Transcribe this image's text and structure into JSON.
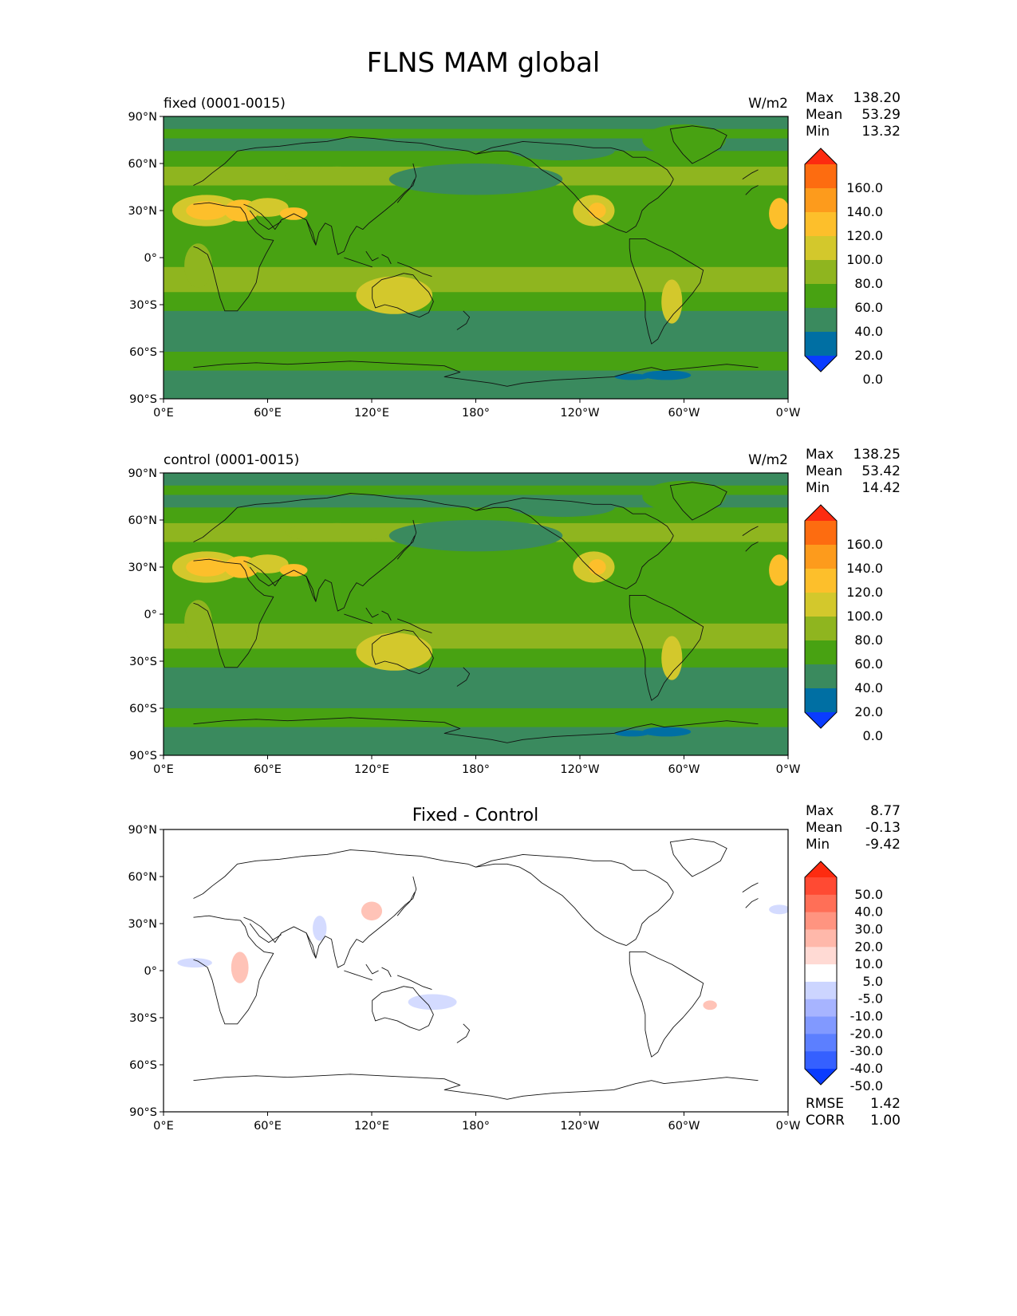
{
  "title": "FLNS MAM global",
  "x_ticks": [
    "0°E",
    "60°E",
    "120°E",
    "180°",
    "120°W",
    "60°W",
    "0°W"
  ],
  "y_ticks": [
    "90°N",
    "60°N",
    "30°N",
    "0°",
    "30°S",
    "60°S",
    "90°S"
  ],
  "colors": {
    "field_levels": [
      "#0a3cff",
      "#006fa3",
      "#3a8a5e",
      "#48a212",
      "#8fb51f",
      "#d3c82c",
      "#fdbf2b",
      "#fd9b1c",
      "#fd6c10",
      "#fd2b10"
    ],
    "diff_levels": [
      "#0a3cff",
      "#3560ff",
      "#5c7fff",
      "#8199ff",
      "#a7b4ff",
      "#ccd5ff",
      "#ffffff",
      "#ffdad4",
      "#ffb8aa",
      "#ff9480",
      "#ff6f57",
      "#ff4a33",
      "#fd2b10"
    ]
  },
  "panels": [
    {
      "name": "fixed",
      "left_title": "fixed (0001-0015)",
      "center_title": "",
      "units": "W/m2",
      "stats": [
        {
          "label": "Max",
          "value": "138.20"
        },
        {
          "label": "Mean",
          "value": "53.29"
        },
        {
          "label": "Min",
          "value": "13.32"
        }
      ],
      "colorbar_labels": [
        "160.0",
        "140.0",
        "120.0",
        "100.0",
        "80.0",
        "60.0",
        "40.0",
        "20.0",
        "0.0"
      ],
      "extra_stats": []
    },
    {
      "name": "control",
      "left_title": "control (0001-0015)",
      "center_title": "",
      "units": "W/m2",
      "stats": [
        {
          "label": "Max",
          "value": "138.25"
        },
        {
          "label": "Mean",
          "value": "53.42"
        },
        {
          "label": "Min",
          "value": "14.42"
        }
      ],
      "colorbar_labels": [
        "160.0",
        "140.0",
        "120.0",
        "100.0",
        "80.0",
        "60.0",
        "40.0",
        "20.0",
        "0.0"
      ],
      "extra_stats": []
    },
    {
      "name": "diff",
      "left_title": "",
      "center_title": "Fixed - Control",
      "units": "",
      "stats": [
        {
          "label": "Max",
          "value": "8.77"
        },
        {
          "label": "Mean",
          "value": "-0.13"
        },
        {
          "label": "Min",
          "value": "-9.42"
        }
      ],
      "colorbar_labels": [
        "50.0",
        "40.0",
        "30.0",
        "20.0",
        "10.0",
        "5.0",
        "-5.0",
        "-10.0",
        "-20.0",
        "-30.0",
        "-40.0",
        "-50.0"
      ],
      "extra_stats": [
        {
          "label": "RMSE",
          "value": "1.42"
        },
        {
          "label": "CORR",
          "value": "1.00"
        }
      ]
    }
  ]
}
